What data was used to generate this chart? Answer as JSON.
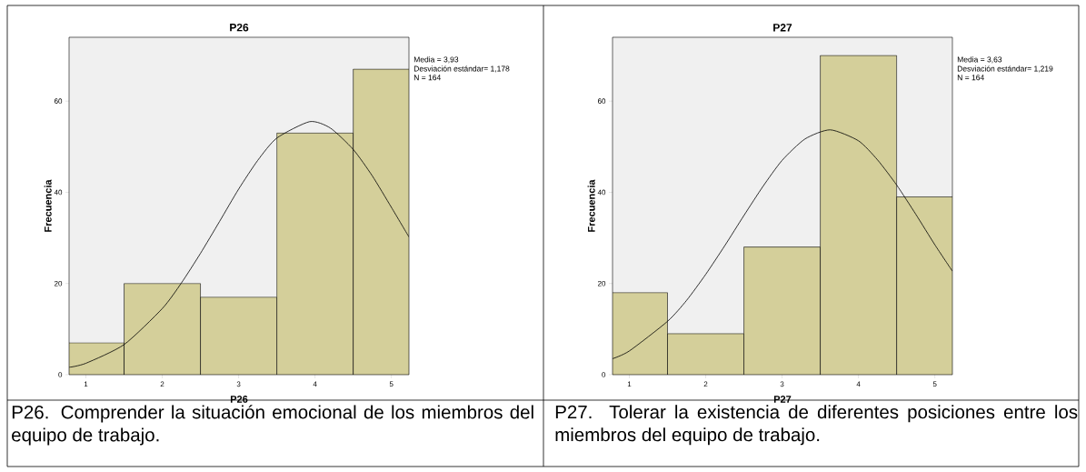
{
  "chart_data": [
    {
      "type": "histogram",
      "title": "P26",
      "xlabel": "P26",
      "ylabel": "Frecuencia",
      "xlim": [
        0.78,
        5.23
      ],
      "ylim": [
        0,
        74
      ],
      "xticks": [
        1,
        2,
        3,
        4,
        5
      ],
      "yticks": [
        0,
        20,
        40,
        60
      ],
      "series": [
        {
          "type": "histogram",
          "color": "#d4cf9a",
          "bins": [
            0.78,
            1.5,
            2.5,
            3.5,
            4.5,
            5.23
          ],
          "values": [
            7,
            20,
            17,
            53,
            67
          ]
        },
        {
          "type": "line",
          "color": "#000000",
          "x": [
            0.78,
            1,
            1.5,
            2,
            2.25,
            2.5,
            2.75,
            3,
            3.25,
            3.5,
            3.93,
            4.2,
            4.5,
            4.75,
            5,
            5.23
          ],
          "values": [
            1.6,
            2.5,
            6.6,
            14.5,
            20.1,
            26.6,
            33.6,
            40.7,
            47.0,
            51.9,
            55.5,
            54.1,
            49.4,
            43.6,
            36.7,
            30.2
          ]
        }
      ],
      "annotations": [
        "Media = 3,93",
        "Desviación estándar= 1,178",
        "N = 164",
        "P26. Comprender la situación emocional de los miembros del equipo de trabajo."
      ]
    },
    {
      "type": "histogram",
      "title": "P27",
      "xlabel": "P27",
      "ylabel": "Frecuencia",
      "xlim": [
        0.78,
        5.23
      ],
      "ylim": [
        0,
        74
      ],
      "xticks": [
        1,
        2,
        3,
        4,
        5
      ],
      "yticks": [
        0,
        20,
        40,
        60
      ],
      "series": [
        {
          "type": "histogram",
          "color": "#d4cf9a",
          "bins": [
            0.78,
            1.5,
            2.5,
            3.5,
            4.5,
            5.23
          ],
          "values": [
            18,
            9,
            28,
            70,
            39
          ]
        },
        {
          "type": "line",
          "color": "#000000",
          "x": [
            0.78,
            1,
            1.5,
            1.75,
            2,
            2.25,
            2.5,
            2.75,
            3,
            3.3,
            3.63,
            4,
            4.25,
            4.5,
            4.75,
            5,
            5.23
          ],
          "values": [
            3.5,
            5.2,
            11.7,
            16.3,
            22.0,
            28.3,
            34.9,
            41.3,
            47.0,
            51.7,
            53.7,
            51.3,
            47.1,
            41.6,
            35.2,
            28.5,
            22.7
          ]
        }
      ],
      "annotations": [
        "Media = 3,63",
        "Desviación estándar= 1,219",
        "N = 164",
        "P27. Tolerar la existencia de diferentes posiciones entre los miembros del equipo de trabajo."
      ]
    }
  ]
}
